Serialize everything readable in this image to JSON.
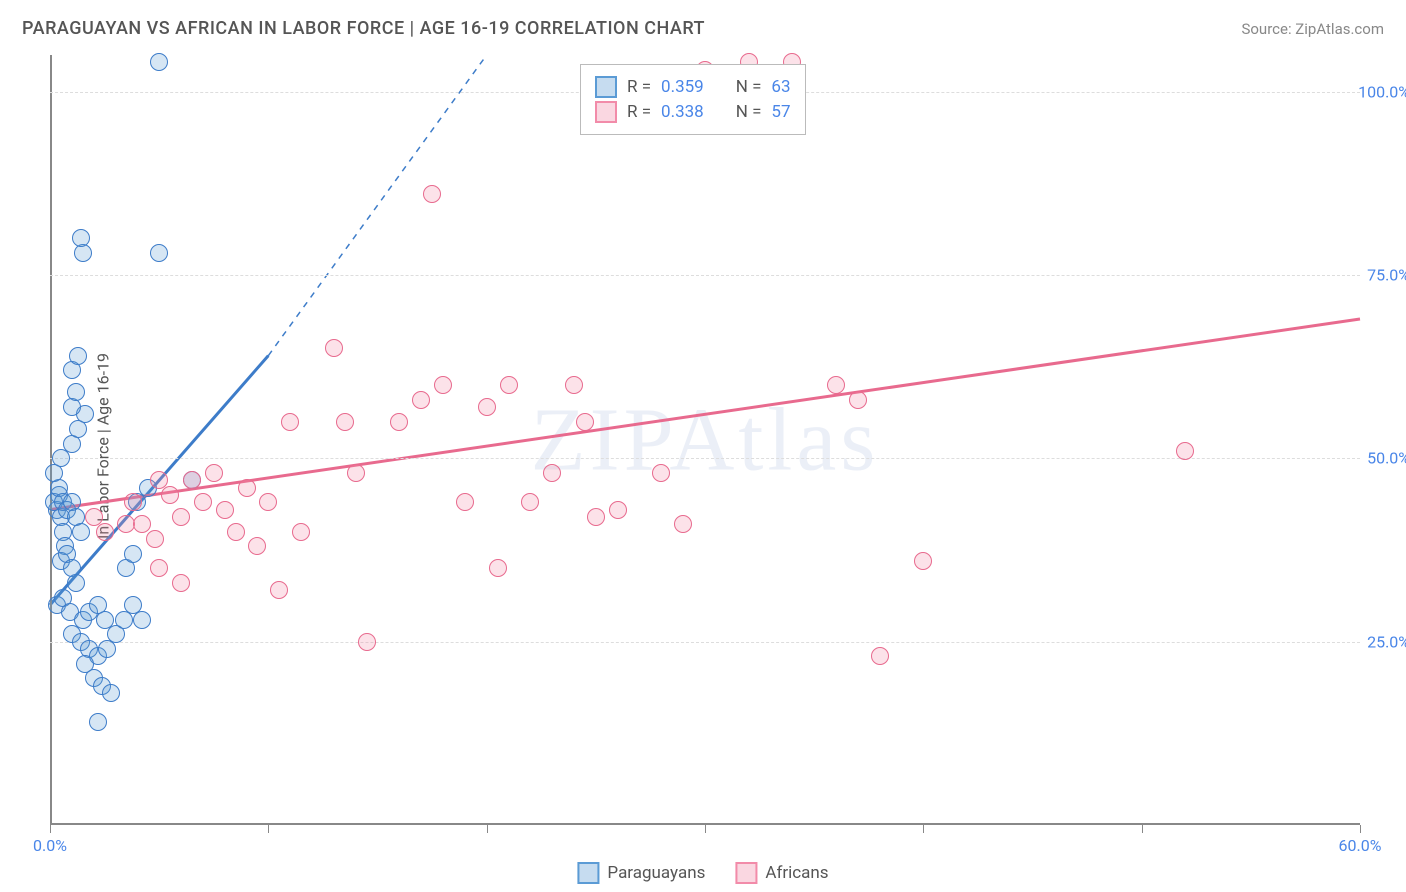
{
  "title": "PARAGUAYAN VS AFRICAN IN LABOR FORCE | AGE 16-19 CORRELATION CHART",
  "source_label": "Source: ZipAtlas.com",
  "watermark": "ZIPAtlas",
  "y_axis_label": "In Labor Force | Age 16-19",
  "chart": {
    "type": "scatter",
    "xlim": [
      0,
      60
    ],
    "ylim": [
      0,
      105
    ],
    "ytick_values": [
      25,
      50,
      75,
      100
    ],
    "ytick_labels": [
      "25.0%",
      "50.0%",
      "75.0%",
      "100.0%"
    ],
    "xtick_values": [
      0,
      10,
      20,
      30,
      40,
      50,
      60
    ],
    "xtick_labels": [
      "0.0%",
      "",
      "",
      "",
      "",
      "",
      "60.0%"
    ],
    "grid_color": "#dddddd",
    "axis_color": "#888888",
    "background_color": "#ffffff",
    "tick_label_color": "#4a86e8",
    "point_radius": 9,
    "point_fill_opacity": 0.25,
    "point_stroke_width": 1.5,
    "series": [
      {
        "name": "Paraguayans",
        "color": "#5b9bd5",
        "stroke_color": "#3d7cc9",
        "R": "0.359",
        "N": "63",
        "trend": {
          "x1": 0,
          "y1": 30,
          "x2": 10,
          "y2": 64,
          "dashed_x2": 20,
          "dashed_y2": 105,
          "width": 3
        },
        "points": [
          [
            0.3,
            43
          ],
          [
            0.4,
            45
          ],
          [
            0.5,
            42
          ],
          [
            0.6,
            40
          ],
          [
            0.7,
            38
          ],
          [
            0.5,
            36
          ],
          [
            0.8,
            37
          ],
          [
            1.0,
            35
          ],
          [
            1.2,
            33
          ],
          [
            0.3,
            30
          ],
          [
            0.6,
            31
          ],
          [
            0.9,
            29
          ],
          [
            1.5,
            28
          ],
          [
            1.8,
            29
          ],
          [
            2.2,
            30
          ],
          [
            2.5,
            28
          ],
          [
            1.0,
            26
          ],
          [
            1.4,
            25
          ],
          [
            1.8,
            24
          ],
          [
            2.2,
            23
          ],
          [
            2.6,
            24
          ],
          [
            3.0,
            26
          ],
          [
            3.4,
            28
          ],
          [
            3.8,
            30
          ],
          [
            4.2,
            28
          ],
          [
            1.6,
            22
          ],
          [
            2.0,
            20
          ],
          [
            2.4,
            19
          ],
          [
            2.8,
            18
          ],
          [
            2.2,
            14
          ],
          [
            3.5,
            35
          ],
          [
            3.8,
            37
          ],
          [
            4.0,
            44
          ],
          [
            4.5,
            46
          ],
          [
            0.5,
            50
          ],
          [
            1.0,
            52
          ],
          [
            1.3,
            54
          ],
          [
            1.6,
            56
          ],
          [
            1.0,
            57
          ],
          [
            1.2,
            59
          ],
          [
            1.0,
            62
          ],
          [
            1.3,
            64
          ],
          [
            1.5,
            78
          ],
          [
            1.4,
            80
          ],
          [
            5.0,
            78
          ],
          [
            5.0,
            104
          ],
          [
            6.5,
            47
          ],
          [
            0.2,
            44
          ],
          [
            0.4,
            46
          ],
          [
            0.2,
            48
          ],
          [
            0.6,
            44
          ],
          [
            0.8,
            43
          ],
          [
            1.0,
            44
          ],
          [
            1.2,
            42
          ],
          [
            1.4,
            40
          ]
        ]
      },
      {
        "name": "Africans",
        "color": "#f28ba9",
        "stroke_color": "#e86a8e",
        "R": "0.338",
        "N": "57",
        "trend": {
          "x1": 0,
          "y1": 43,
          "x2": 60,
          "y2": 69,
          "width": 3
        },
        "points": [
          [
            2.0,
            42
          ],
          [
            2.5,
            40
          ],
          [
            3.5,
            41
          ],
          [
            3.8,
            44
          ],
          [
            4.2,
            41
          ],
          [
            4.8,
            39
          ],
          [
            5.0,
            47
          ],
          [
            5.5,
            45
          ],
          [
            6.0,
            42
          ],
          [
            6.5,
            47
          ],
          [
            7.0,
            44
          ],
          [
            7.5,
            48
          ],
          [
            5.0,
            35
          ],
          [
            6.0,
            33
          ],
          [
            8.0,
            43
          ],
          [
            8.5,
            40
          ],
          [
            9.0,
            46
          ],
          [
            9.5,
            38
          ],
          [
            10.0,
            44
          ],
          [
            10.5,
            32
          ],
          [
            11.0,
            55
          ],
          [
            11.5,
            40
          ],
          [
            13.0,
            65
          ],
          [
            13.5,
            55
          ],
          [
            14.0,
            48
          ],
          [
            14.5,
            25
          ],
          [
            16.0,
            55
          ],
          [
            17.0,
            58
          ],
          [
            17.5,
            86
          ],
          [
            18.0,
            60
          ],
          [
            19.0,
            44
          ],
          [
            20.0,
            57
          ],
          [
            20.5,
            35
          ],
          [
            21.0,
            60
          ],
          [
            22.0,
            44
          ],
          [
            23.0,
            48
          ],
          [
            24.0,
            60
          ],
          [
            24.5,
            55
          ],
          [
            25.0,
            42
          ],
          [
            26.0,
            43
          ],
          [
            28.0,
            48
          ],
          [
            29.0,
            41
          ],
          [
            30.0,
            103
          ],
          [
            32.0,
            104
          ],
          [
            34.0,
            104
          ],
          [
            36.0,
            60
          ],
          [
            37.0,
            58
          ],
          [
            38.0,
            23
          ],
          [
            40.0,
            36
          ],
          [
            52.0,
            51
          ]
        ]
      }
    ]
  },
  "legend_top": {
    "rows": [
      {
        "swatch_fill": "rgba(91,155,213,0.35)",
        "swatch_border": "#5b9bd5",
        "R_label": "R =",
        "R_val": "0.359",
        "N_label": "N =",
        "N_val": "63"
      },
      {
        "swatch_fill": "rgba(242,139,169,0.35)",
        "swatch_border": "#f28ba9",
        "R_label": "R =",
        "R_val": "0.338",
        "N_label": "N =",
        "N_val": "57"
      }
    ]
  },
  "legend_bottom": [
    {
      "swatch_fill": "rgba(91,155,213,0.35)",
      "swatch_border": "#5b9bd5",
      "label": "Paraguayans"
    },
    {
      "swatch_fill": "rgba(242,139,169,0.35)",
      "swatch_border": "#f28ba9",
      "label": "Africans"
    }
  ]
}
